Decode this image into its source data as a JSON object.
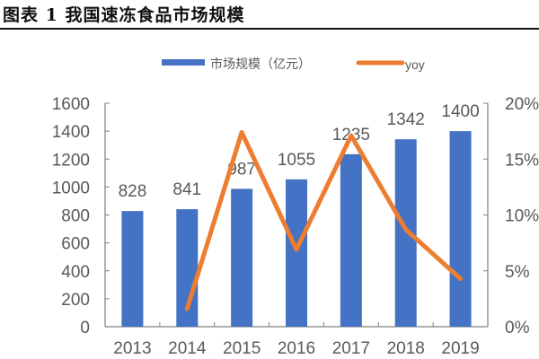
{
  "header": {
    "title": "图表 1 我国速冻食品市场规模"
  },
  "legend": {
    "bar_label": "市场规模（亿元）",
    "line_label": "yoy"
  },
  "colors": {
    "bar": "#4472C4",
    "line": "#ED7D31",
    "axis": "#808080",
    "text": "#595959"
  },
  "chart_data": {
    "type": "bar",
    "title": "图表 1 我国速冻食品市场规模",
    "xlabel": "",
    "ylabel": "",
    "categories": [
      "2013",
      "2014",
      "2015",
      "2016",
      "2017",
      "2018",
      "2019"
    ],
    "series": [
      {
        "name": "市场规模（亿元）",
        "type": "bar",
        "axis": "left",
        "values": [
          828,
          841,
          987,
          1055,
          1235,
          1342,
          1400
        ],
        "labels": [
          "828",
          "841",
          "987",
          "1055",
          "1235",
          "1342",
          "1400"
        ]
      },
      {
        "name": "yoy",
        "type": "line",
        "axis": "right",
        "values": [
          null,
          1.6,
          17.4,
          6.9,
          17.1,
          8.7,
          4.3
        ],
        "unit": "%"
      }
    ],
    "ylim": [
      0,
      1600
    ],
    "yticks": [
      "0",
      "200",
      "400",
      "600",
      "800",
      "1000",
      "1200",
      "1400",
      "1600"
    ],
    "y2lim": [
      0,
      20
    ],
    "y2ticks": [
      "0%",
      "5%",
      "10%",
      "15%",
      "20%"
    ],
    "grid": false,
    "legend_position": "top"
  }
}
